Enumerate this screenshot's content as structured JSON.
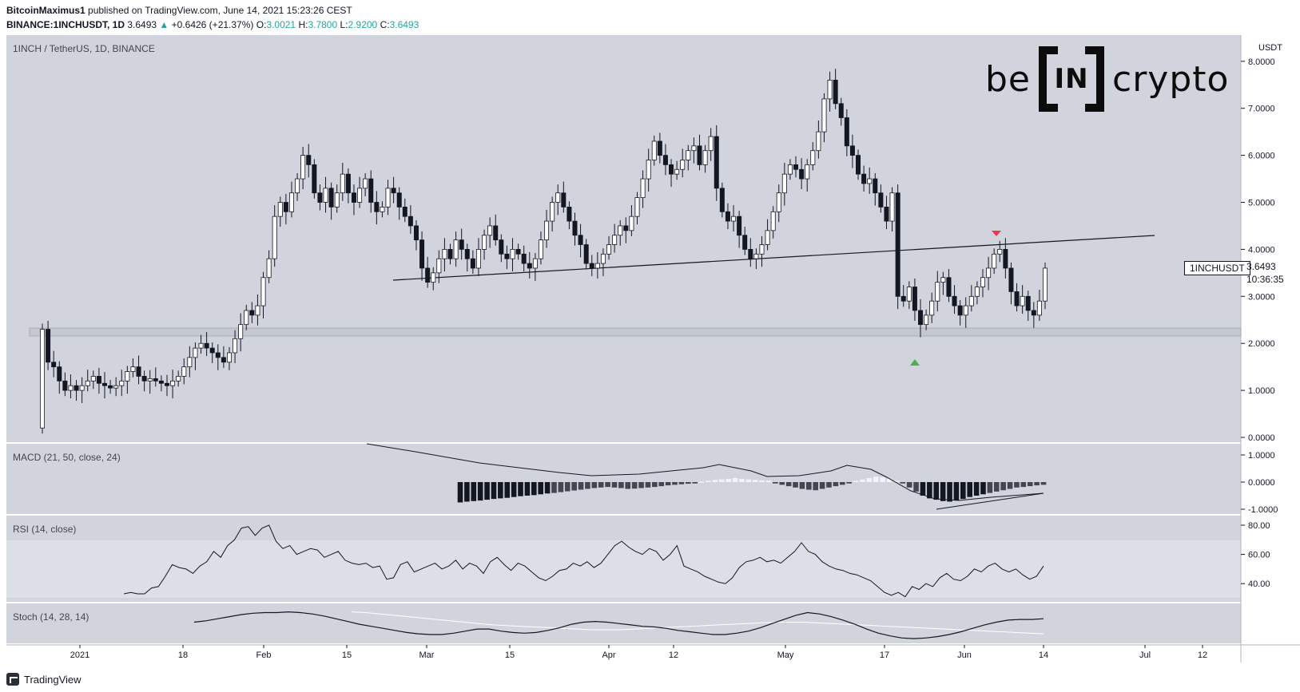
{
  "header": {
    "author": "BitcoinMaximus1",
    "published": " published on TradingView.com, June 14, 2021 15:23:26 CEST",
    "symbol": "BINANCE:1INCHUSDT, 1D",
    "last": "3.6493",
    "change": "+0.6426 (+21.37%)",
    "o_label": "O:",
    "o": "3.0021",
    "h_label": "H:",
    "h": "3.7800",
    "l_label": "L:",
    "l": "2.9200",
    "c_label": "C:",
    "c": "3.6493"
  },
  "main_pane": {
    "title": "1INCH / TetherUS, 1D, BINANCE",
    "currency": "USDT",
    "price_tag": "1INCHUSDT",
    "last_price": "3.6493",
    "countdown": "10:36:35"
  },
  "watermark": {
    "left": "be",
    "box": "IN",
    "right": "crypto"
  },
  "macd_label": "MACD (21, 50, close, 24)",
  "rsi_label": "RSI (14, close)",
  "stoch_label": "Stoch (14, 28, 14)",
  "footer": {
    "brand": "TradingView"
  },
  "colors": {
    "pane_bg": "#d1d4dc",
    "candle_up": "#ffffff",
    "candle_down": "#131722",
    "arrow_up": "#4caf50",
    "arrow_down": "#f23645"
  },
  "chart_data": [
    {
      "type": "candlestick",
      "title": "1INCH / TetherUS, 1D, BINANCE",
      "ylabel": "USDT",
      "ylim": [
        0,
        8.2
      ],
      "yticks": [
        "8.0000",
        "7.0000",
        "6.0000",
        "5.0000",
        "4.0000",
        "3.0000",
        "2.0000",
        "1.0000",
        "0.0000"
      ],
      "xticks": [
        "2021",
        "18",
        "Feb",
        "15",
        "Mar",
        "15",
        "Apr",
        "12",
        "May",
        "17",
        "Jun",
        "14",
        "Jul",
        "12"
      ],
      "x_start": "2020-12-25",
      "x_end": "2021-06-14",
      "close_series": [
        2.3,
        1.6,
        1.5,
        1.2,
        1.0,
        1.1,
        1.0,
        1.1,
        1.2,
        1.3,
        1.15,
        1.1,
        1.05,
        1.1,
        1.2,
        1.4,
        1.5,
        1.3,
        1.2,
        1.25,
        1.2,
        1.15,
        1.1,
        1.2,
        1.3,
        1.5,
        1.7,
        1.9,
        2.0,
        1.9,
        1.8,
        1.7,
        1.6,
        1.8,
        2.1,
        2.4,
        2.7,
        2.6,
        2.8,
        3.4,
        3.8,
        4.7,
        5.0,
        4.8,
        5.2,
        5.5,
        6.0,
        5.8,
        5.2,
        5.0,
        5.3,
        4.9,
        5.2,
        5.6,
        5.2,
        5.0,
        5.3,
        5.5,
        5.0,
        4.8,
        4.9,
        5.3,
        5.2,
        4.9,
        4.7,
        4.5,
        4.2,
        3.6,
        3.3,
        3.5,
        3.8,
        4.0,
        3.8,
        4.2,
        4.0,
        3.8,
        3.6,
        4.0,
        4.3,
        4.5,
        4.2,
        3.9,
        3.8,
        4.0,
        3.9,
        3.7,
        3.6,
        3.8,
        4.2,
        4.6,
        5.0,
        5.2,
        4.9,
        4.6,
        4.3,
        4.1,
        3.7,
        3.6,
        3.7,
        3.9,
        4.1,
        4.3,
        4.5,
        4.4,
        4.7,
        5.1,
        5.5,
        5.9,
        6.3,
        6.0,
        5.8,
        5.6,
        5.7,
        5.9,
        6.1,
        6.2,
        5.8,
        6.1,
        6.4,
        5.3,
        4.8,
        4.6,
        4.7,
        4.3,
        4.0,
        3.8,
        3.9,
        4.1,
        4.4,
        4.8,
        5.2,
        5.6,
        5.8,
        5.7,
        5.5,
        5.8,
        6.1,
        6.5,
        7.2,
        7.6,
        7.1,
        6.8,
        6.2,
        6.0,
        5.6,
        5.4,
        5.5,
        5.2,
        4.9,
        4.6,
        5.2,
        3.0,
        2.9,
        3.2,
        2.7,
        2.4,
        2.6,
        2.9,
        3.3,
        3.4,
        3.0,
        2.8,
        2.6,
        2.8,
        3.0,
        3.2,
        3.4,
        3.6,
        3.9,
        4.0,
        3.6,
        3.1,
        2.8,
        3.0,
        2.7,
        2.6,
        2.9,
        3.6
      ]
    },
    {
      "type": "bar",
      "title": "MACD (21, 50, close, 24)",
      "ylim": [
        -1.1,
        1.2
      ],
      "yticks": [
        "1.0000",
        "0.0000",
        "-1.0000"
      ],
      "histogram": [
        -0.75,
        -0.72,
        -0.7,
        -0.68,
        -0.65,
        -0.62,
        -0.6,
        -0.58,
        -0.55,
        -0.52,
        -0.5,
        -0.48,
        -0.45,
        -0.42,
        -0.4,
        -0.37,
        -0.34,
        -0.31,
        -0.28,
        -0.25,
        -0.22,
        -0.2,
        -0.18,
        -0.2,
        -0.22,
        -0.25,
        -0.24,
        -0.22,
        -0.2,
        -0.18,
        -0.15,
        -0.12,
        -0.1,
        -0.08,
        -0.06,
        -0.05,
        0.02,
        0.05,
        0.08,
        0.1,
        0.12,
        0.15,
        0.12,
        0.1,
        0.08,
        0.06,
        0.05,
        -0.05,
        -0.1,
        -0.15,
        -0.2,
        -0.25,
        -0.28,
        -0.3,
        -0.25,
        -0.2,
        -0.15,
        -0.1,
        -0.05,
        0.05,
        0.1,
        0.15,
        0.2,
        0.18,
        0.12,
        0.05,
        -0.05,
        -0.2,
        -0.35,
        -0.5,
        -0.6,
        -0.65,
        -0.7,
        -0.72,
        -0.68,
        -0.62,
        -0.55,
        -0.5,
        -0.45,
        -0.4,
        -0.35,
        -0.3,
        -0.25,
        -0.2,
        -0.18,
        -0.15,
        -0.12,
        -0.1
      ]
    },
    {
      "type": "line",
      "title": "RSI (14, close)",
      "ylim": [
        27,
        85
      ],
      "yticks": [
        "80.00",
        "60.00",
        "40.00"
      ],
      "values": [
        33,
        34,
        33,
        33,
        37,
        38,
        45,
        53,
        51,
        50,
        47,
        52,
        55,
        62,
        58,
        66,
        70,
        78,
        79,
        73,
        78,
        80,
        69,
        64,
        66,
        60,
        62,
        64,
        63,
        58,
        60,
        62,
        56,
        54,
        53,
        54,
        51,
        52,
        43,
        44,
        53,
        55,
        48,
        50,
        52,
        54,
        50,
        52,
        56,
        50,
        54,
        52,
        47,
        55,
        58,
        53,
        49,
        54,
        52,
        48,
        44,
        42,
        45,
        49,
        50,
        54,
        52,
        55,
        51,
        54,
        60,
        66,
        69,
        65,
        62,
        60,
        64,
        62,
        56,
        60,
        66,
        52,
        50,
        48,
        45,
        43,
        41,
        40,
        44,
        51,
        55,
        56,
        58,
        55,
        56,
        54,
        58,
        62,
        68,
        62,
        60,
        55,
        52,
        50,
        49,
        47,
        46,
        44,
        42,
        38,
        34,
        32,
        34,
        31,
        38,
        36,
        40,
        38,
        44,
        47,
        43,
        42,
        45,
        50,
        48,
        52,
        54,
        50,
        48,
        50,
        46,
        43,
        45,
        52
      ]
    },
    {
      "type": "line",
      "title": "Stoch (14, 28, 14)",
      "ylim": [
        0,
        100
      ],
      "k_values": [
        50,
        54,
        60,
        66,
        72,
        76,
        78,
        78,
        80,
        78,
        74,
        68,
        60,
        52,
        44,
        38,
        32,
        26,
        20,
        16,
        14,
        14,
        18,
        24,
        30,
        30,
        24,
        20,
        18,
        20,
        26,
        34,
        44,
        50,
        52,
        50,
        46,
        42,
        38,
        36,
        32,
        26,
        22,
        18,
        14,
        14,
        18,
        24,
        34,
        46,
        58,
        70,
        78,
        74,
        66,
        56,
        44,
        30,
        18,
        10,
        4,
        2,
        4,
        8,
        14,
        22,
        32,
        42,
        50,
        56,
        58,
        58,
        60
      ],
      "d_values": [
        80,
        78,
        74,
        70,
        66,
        62,
        58,
        54,
        50,
        46,
        42,
        40,
        38,
        36,
        34,
        32,
        30,
        28,
        28,
        28,
        30,
        32,
        34,
        36,
        38,
        40,
        42,
        44,
        46,
        48,
        50,
        50,
        50,
        48,
        46,
        44,
        42,
        40,
        38,
        36,
        34,
        32,
        30,
        28,
        26,
        24,
        22,
        20,
        18,
        16
      ]
    }
  ]
}
